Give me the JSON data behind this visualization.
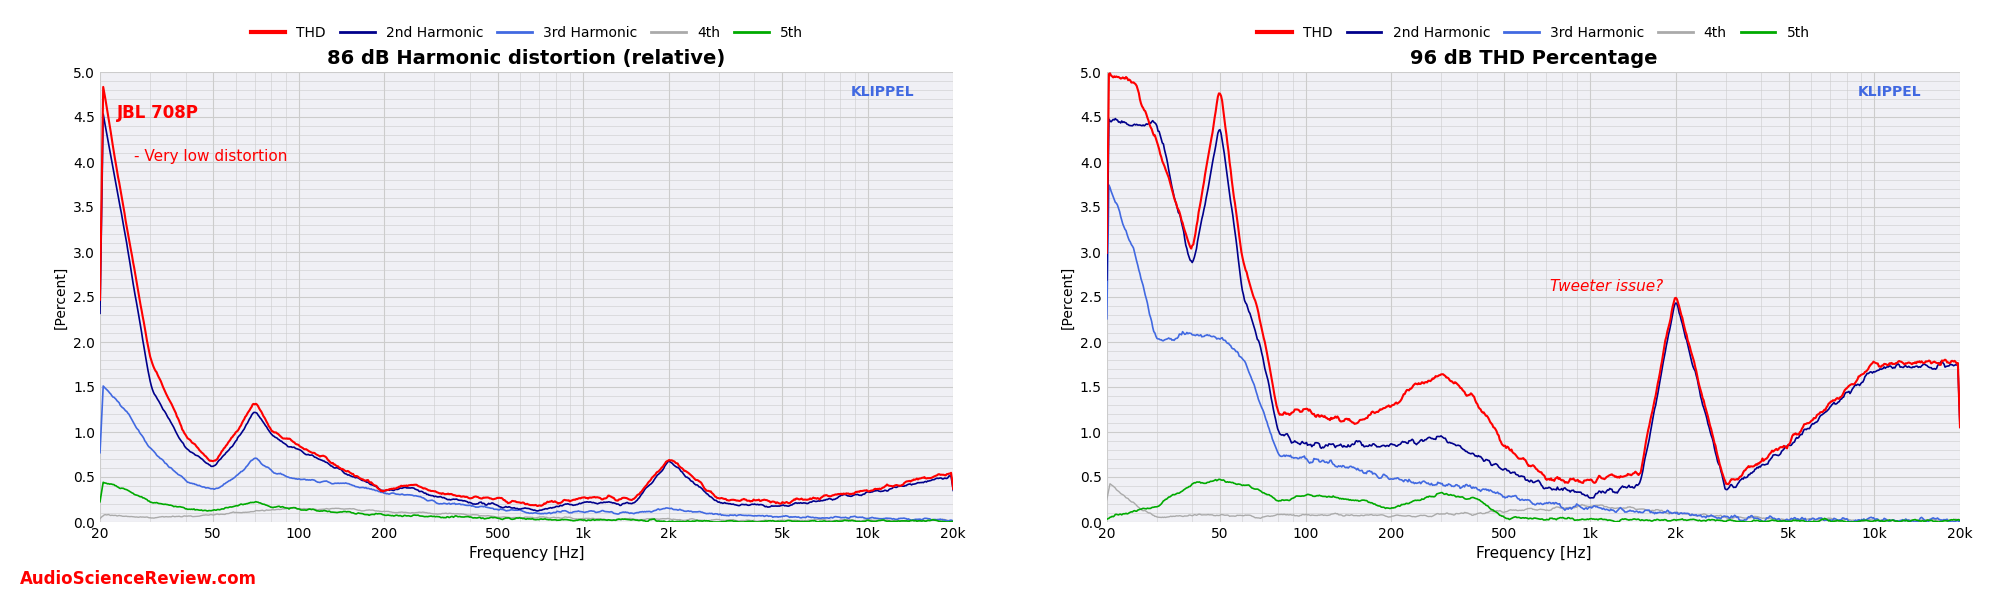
{
  "chart1_title": "86 dB Harmonic distortion (relative)",
  "chart2_title": "96 dB THD Percentage",
  "ylabel": "[Percent]",
  "xlabel": "Frequency [Hz]",
  "klippel_text": "KLIPPEL",
  "chart1_annotation": "JBL 708P\n  - Very low distortion",
  "chart2_annotation": "Tweeter issue?",
  "watermark": "AudioScienceReview.com",
  "legend_entries": [
    "THD",
    "2nd Harmonic",
    "3rd Harmonic",
    "4th",
    "5th"
  ],
  "colors": {
    "THD": "#ff0000",
    "2nd": "#00008b",
    "3rd": "#4169e1",
    "4th": "#aaaaaa",
    "5th": "#00aa00",
    "klippel": "#4169e1",
    "annotation1": "#ff0000",
    "annotation2": "#ff0000",
    "watermark": "#ff0000",
    "background": "#f0f0f5",
    "grid": "#cccccc"
  },
  "ylim": [
    0.0,
    5.0
  ],
  "yticks": [
    0.0,
    0.5,
    1.0,
    1.5,
    2.0,
    2.5,
    3.0,
    3.5,
    4.0,
    4.5,
    5.0
  ],
  "freq_ticks": [
    20,
    50,
    100,
    200,
    500,
    1000,
    2000,
    5000,
    10000,
    20000
  ],
  "freq_tick_labels": [
    "20",
    "50",
    "100",
    "200",
    "500",
    "1k",
    "2k",
    "5k",
    "10k",
    "20k"
  ],
  "xlim": [
    20,
    20000
  ]
}
